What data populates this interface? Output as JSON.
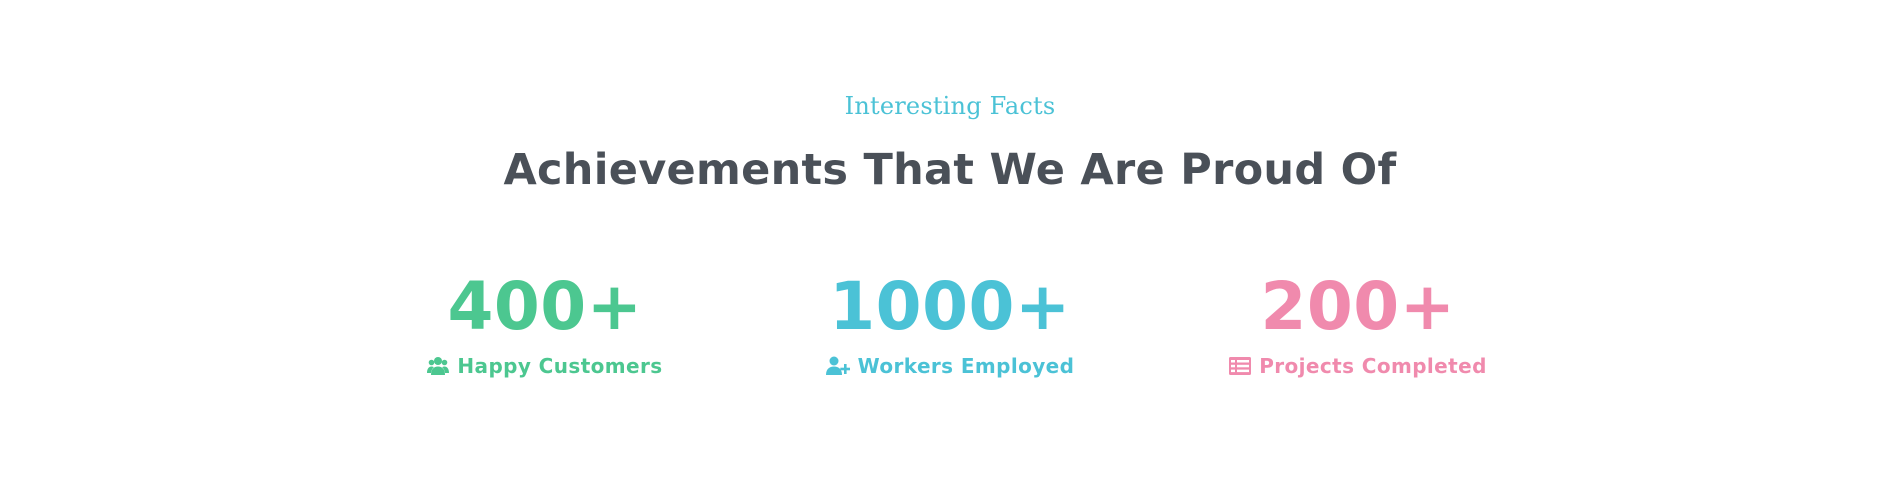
{
  "section": {
    "eyebrow": "Interesting Facts",
    "heading": "Achievements That We Are Proud Of"
  },
  "stats": [
    {
      "value": "400+",
      "label": "Happy Customers",
      "icon": "users-icon",
      "color": "#4cc790"
    },
    {
      "value": "1000+",
      "label": "Workers Employed",
      "icon": "user-plus-icon",
      "color": "#4bc2d6"
    },
    {
      "value": "200+",
      "label": "Projects Completed",
      "icon": "list-icon",
      "color": "#f08aad"
    }
  ]
}
